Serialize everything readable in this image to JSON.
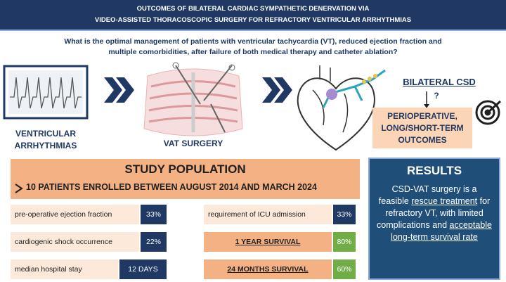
{
  "header": {
    "title_lines": [
      "OUTCOMES OF BILATERAL CARDIAC SYMPATHETIC DENERVATION VIA",
      "VIDEO-ASSISTED THORACOSCOPIC SURGERY FOR REFRACTORY VENTRICULAR ARRHYTHMIAS"
    ]
  },
  "question": [
    "What is the optimal management of patients with ventricular tachycardia (VT), reduced ejection fraction and",
    "multiple comorbidities, after failure of both medical therapy and catheter ablation?"
  ],
  "flow": {
    "arrhythmias": [
      "VENTRICULAR",
      "ARRHYTHMIAS"
    ],
    "surgery": "VAT SURGERY",
    "csd": "BILATERAL CSD",
    "question_mark": "?",
    "outcomes": [
      "PERIOPERATIVE,",
      "LONG/SHORT-TERM",
      "OUTCOMES"
    ]
  },
  "study_population": {
    "title": "STUDY POPULATION",
    "subtitle": "10 PATIENTS ENROLLED BETWEEN AUGUST 2014 AND MARCH 2024",
    "left": [
      {
        "label": "pre-operative ejection fraction",
        "value": "33%"
      },
      {
        "label": "cardiogenic shock occurrence",
        "value": "22%"
      },
      {
        "label": "median hospital stay",
        "value": "12 DAYS"
      }
    ],
    "right": [
      {
        "label": "requirement of ICU admission",
        "value": "33%"
      },
      {
        "label": "1 YEAR SURVIVAL",
        "value": "80%"
      },
      {
        "label": "24 MONTHS SURVIVAL",
        "value": "60%"
      }
    ]
  },
  "results": {
    "title": "RESULTS",
    "parts": [
      "CSD-VAT surgery is a feasible ",
      "rescue treatment",
      " for refractory VT, with limited complications and ",
      "acceptable long-term survival rate"
    ]
  }
}
